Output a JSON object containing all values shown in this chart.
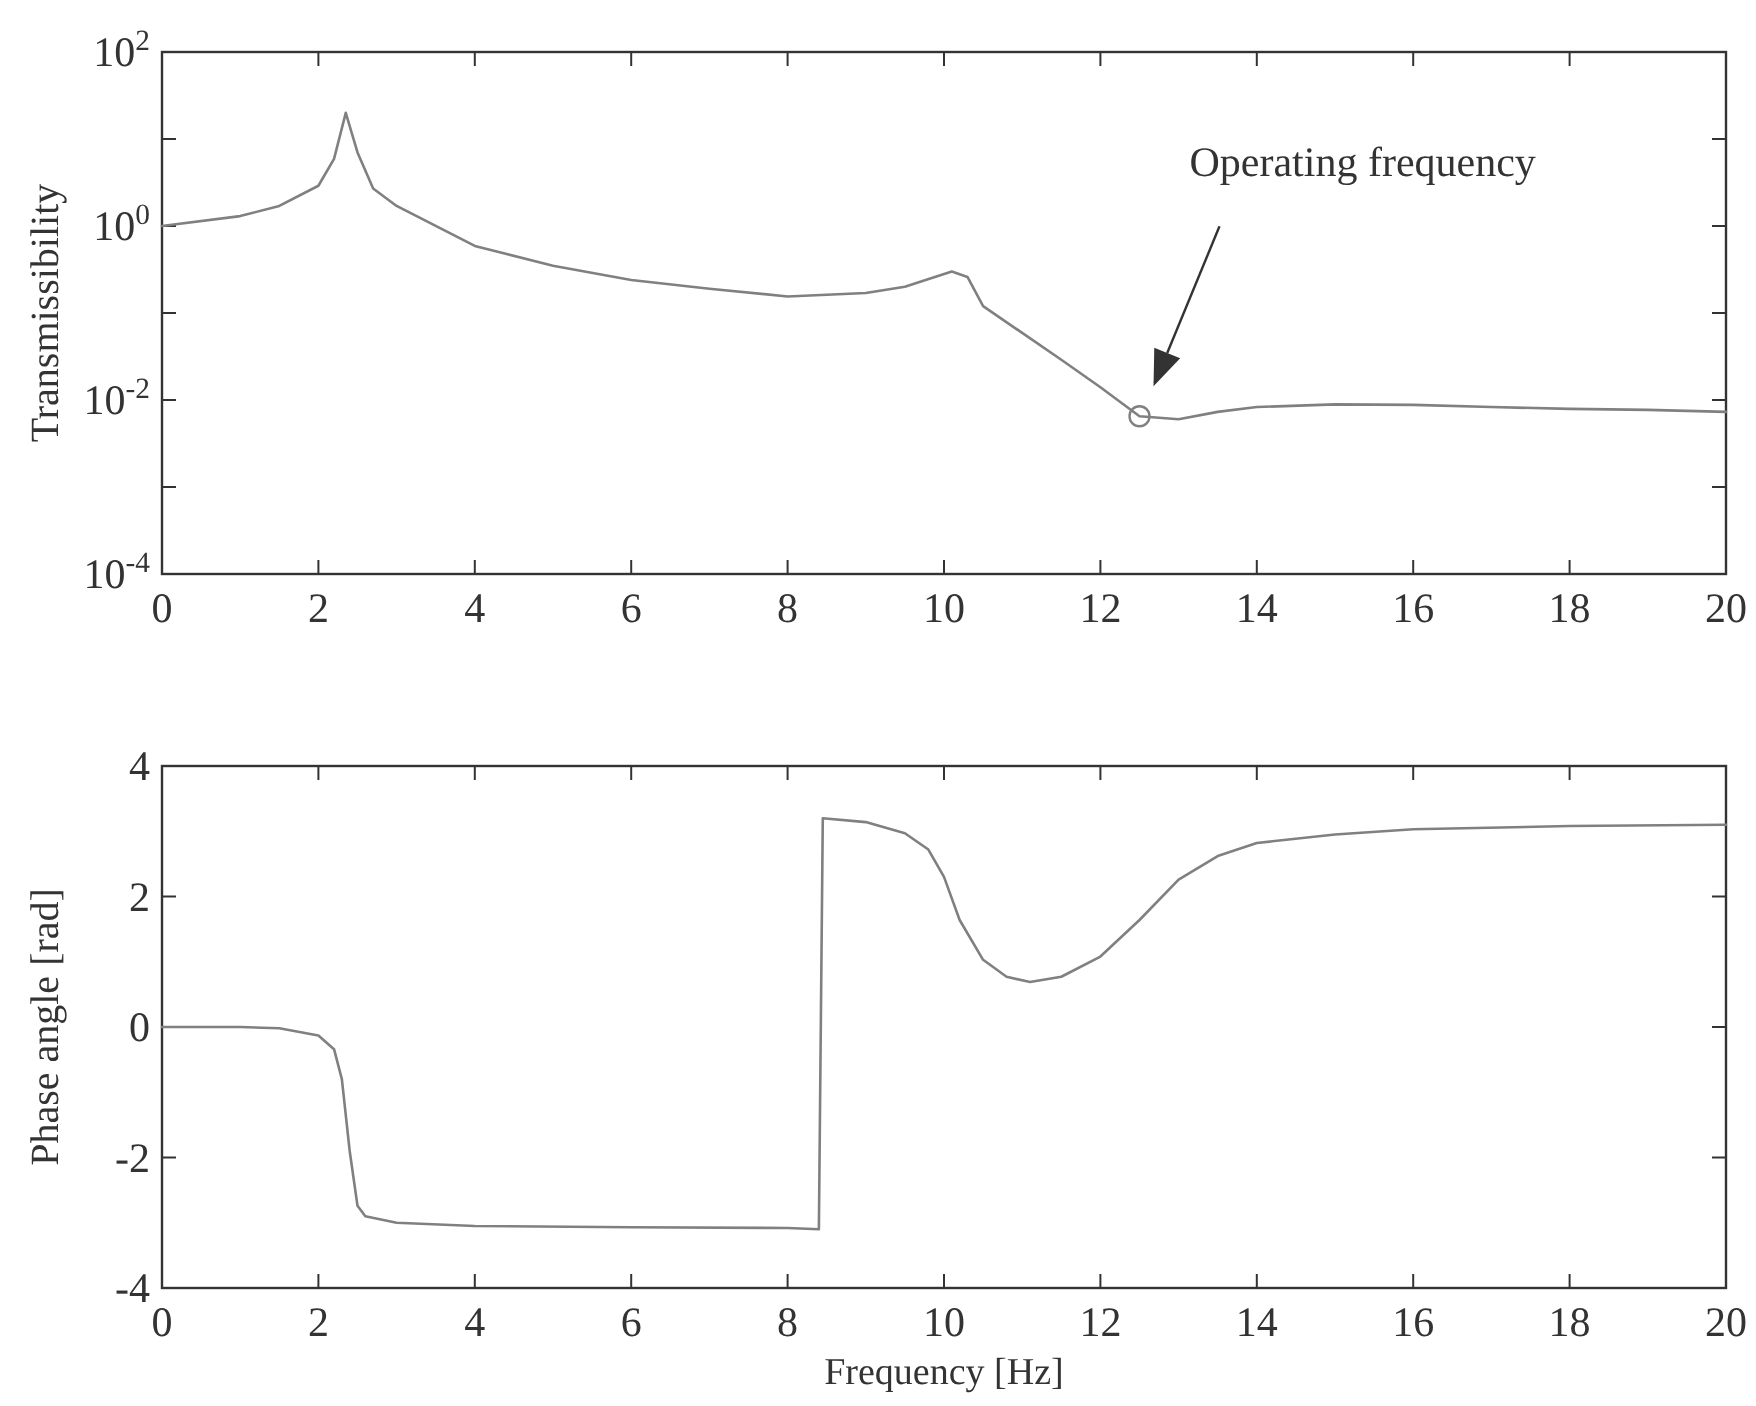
{
  "chart_data": [
    {
      "type": "line",
      "ylabel": "Transmissibility",
      "log": "y",
      "xlim": [
        0,
        20
      ],
      "ylim": [
        0.0001,
        100
      ],
      "xticks": [
        0,
        2,
        4,
        6,
        8,
        10,
        12,
        14,
        16,
        18,
        20
      ],
      "yticks": [
        {
          "value": 0.0001,
          "label": "10$^{-4}$"
        },
        {
          "value": 0.001,
          "label": null
        },
        {
          "value": 0.01,
          "label": "10$^{-2}$"
        },
        {
          "value": 0.1,
          "label": null
        },
        {
          "value": 1,
          "label": "10$^{0}$"
        },
        {
          "value": 10,
          "label": null
        },
        {
          "value": 100,
          "label": "10$^{2}$"
        }
      ],
      "grid": false,
      "series": [
        {
          "color": "#808080",
          "x": [
            0,
            1,
            1.5,
            2,
            2.2,
            2.35,
            2.5,
            2.7,
            3,
            4,
            5,
            6,
            7,
            8,
            9,
            9.5,
            10.1,
            10.3,
            10.5,
            11,
            11.5,
            12,
            12.5,
            13,
            13.5,
            14,
            15,
            16,
            17,
            18,
            19,
            20
          ],
          "values": [
            1,
            1.3,
            1.7,
            2.9,
            5.9,
            20,
            7,
            2.7,
            1.7,
            0.59,
            0.35,
            0.24,
            0.19,
            0.155,
            0.17,
            0.2,
            0.3,
            0.26,
            0.12,
            0.059,
            0.029,
            0.014,
            0.0065,
            0.006,
            0.0073,
            0.0083,
            0.0089,
            0.0088,
            0.0083,
            0.0079,
            0.0077,
            0.0073
          ]
        },
        {
          "type": "scatter",
          "marker": "circle",
          "color": "#808080",
          "x": [
            12.5
          ],
          "values": [
            0.0065
          ]
        }
      ],
      "annotations": [
        "Operating frequency"
      ]
    },
    {
      "type": "line",
      "xlabel": "Frequency [Hz]",
      "ylabel": "Phase angle [rad]",
      "xlim": [
        0,
        20
      ],
      "ylim": [
        -4,
        4
      ],
      "xticks": [
        0,
        2,
        4,
        6,
        8,
        10,
        12,
        14,
        16,
        18,
        20
      ],
      "yticks": [
        -4,
        -2,
        0,
        2,
        4
      ],
      "grid": false,
      "series": [
        {
          "color": "#808080",
          "x": [
            0,
            1,
            1.5,
            2,
            2.2,
            2.3,
            2.4,
            2.5,
            2.6,
            3,
            4,
            6,
            8,
            8.4,
            8.45,
            9,
            9.5,
            9.8,
            10,
            10.2,
            10.5,
            10.8,
            11.1,
            11.5,
            12,
            12.5,
            13,
            13.5,
            14,
            15,
            16,
            18,
            20
          ],
          "values": [
            0,
            0,
            -0.02,
            -0.13,
            -0.34,
            -0.8,
            -1.9,
            -2.74,
            -2.9,
            -3,
            -3.05,
            -3.07,
            -3.08,
            -3.1,
            3.2,
            3.14,
            2.97,
            2.72,
            2.3,
            1.64,
            1.03,
            0.77,
            0.69,
            0.77,
            1.08,
            1.64,
            2.26,
            2.62,
            2.82,
            2.95,
            3.03,
            3.08,
            3.1
          ]
        }
      ]
    }
  ]
}
